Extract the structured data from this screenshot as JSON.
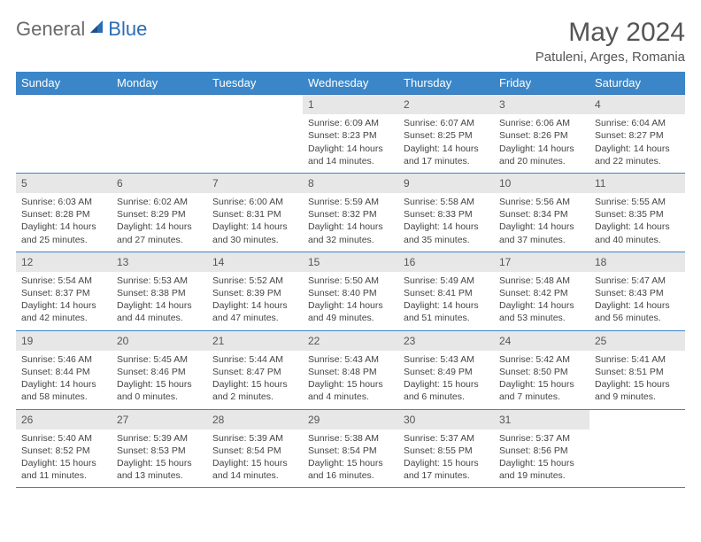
{
  "logo": {
    "general": "General",
    "blue": "Blue"
  },
  "title": "May 2024",
  "location": "Patuleni, Arges, Romania",
  "colors": {
    "header_bg": "#3b86c8",
    "header_text": "#ffffff",
    "daynum_bg": "#e7e7e7",
    "rule": "#3b86c8",
    "text": "#444444",
    "title_text": "#555555",
    "logo_gray": "#6a6a6a",
    "logo_blue": "#2a6db5"
  },
  "weekdays": [
    "Sunday",
    "Monday",
    "Tuesday",
    "Wednesday",
    "Thursday",
    "Friday",
    "Saturday"
  ],
  "weeks": [
    [
      null,
      null,
      null,
      {
        "n": "1",
        "sr": "6:09 AM",
        "ss": "8:23 PM",
        "dl": "14 hours and 14 minutes."
      },
      {
        "n": "2",
        "sr": "6:07 AM",
        "ss": "8:25 PM",
        "dl": "14 hours and 17 minutes."
      },
      {
        "n": "3",
        "sr": "6:06 AM",
        "ss": "8:26 PM",
        "dl": "14 hours and 20 minutes."
      },
      {
        "n": "4",
        "sr": "6:04 AM",
        "ss": "8:27 PM",
        "dl": "14 hours and 22 minutes."
      }
    ],
    [
      {
        "n": "5",
        "sr": "6:03 AM",
        "ss": "8:28 PM",
        "dl": "14 hours and 25 minutes."
      },
      {
        "n": "6",
        "sr": "6:02 AM",
        "ss": "8:29 PM",
        "dl": "14 hours and 27 minutes."
      },
      {
        "n": "7",
        "sr": "6:00 AM",
        "ss": "8:31 PM",
        "dl": "14 hours and 30 minutes."
      },
      {
        "n": "8",
        "sr": "5:59 AM",
        "ss": "8:32 PM",
        "dl": "14 hours and 32 minutes."
      },
      {
        "n": "9",
        "sr": "5:58 AM",
        "ss": "8:33 PM",
        "dl": "14 hours and 35 minutes."
      },
      {
        "n": "10",
        "sr": "5:56 AM",
        "ss": "8:34 PM",
        "dl": "14 hours and 37 minutes."
      },
      {
        "n": "11",
        "sr": "5:55 AM",
        "ss": "8:35 PM",
        "dl": "14 hours and 40 minutes."
      }
    ],
    [
      {
        "n": "12",
        "sr": "5:54 AM",
        "ss": "8:37 PM",
        "dl": "14 hours and 42 minutes."
      },
      {
        "n": "13",
        "sr": "5:53 AM",
        "ss": "8:38 PM",
        "dl": "14 hours and 44 minutes."
      },
      {
        "n": "14",
        "sr": "5:52 AM",
        "ss": "8:39 PM",
        "dl": "14 hours and 47 minutes."
      },
      {
        "n": "15",
        "sr": "5:50 AM",
        "ss": "8:40 PM",
        "dl": "14 hours and 49 minutes."
      },
      {
        "n": "16",
        "sr": "5:49 AM",
        "ss": "8:41 PM",
        "dl": "14 hours and 51 minutes."
      },
      {
        "n": "17",
        "sr": "5:48 AM",
        "ss": "8:42 PM",
        "dl": "14 hours and 53 minutes."
      },
      {
        "n": "18",
        "sr": "5:47 AM",
        "ss": "8:43 PM",
        "dl": "14 hours and 56 minutes."
      }
    ],
    [
      {
        "n": "19",
        "sr": "5:46 AM",
        "ss": "8:44 PM",
        "dl": "14 hours and 58 minutes."
      },
      {
        "n": "20",
        "sr": "5:45 AM",
        "ss": "8:46 PM",
        "dl": "15 hours and 0 minutes."
      },
      {
        "n": "21",
        "sr": "5:44 AM",
        "ss": "8:47 PM",
        "dl": "15 hours and 2 minutes."
      },
      {
        "n": "22",
        "sr": "5:43 AM",
        "ss": "8:48 PM",
        "dl": "15 hours and 4 minutes."
      },
      {
        "n": "23",
        "sr": "5:43 AM",
        "ss": "8:49 PM",
        "dl": "15 hours and 6 minutes."
      },
      {
        "n": "24",
        "sr": "5:42 AM",
        "ss": "8:50 PM",
        "dl": "15 hours and 7 minutes."
      },
      {
        "n": "25",
        "sr": "5:41 AM",
        "ss": "8:51 PM",
        "dl": "15 hours and 9 minutes."
      }
    ],
    [
      {
        "n": "26",
        "sr": "5:40 AM",
        "ss": "8:52 PM",
        "dl": "15 hours and 11 minutes."
      },
      {
        "n": "27",
        "sr": "5:39 AM",
        "ss": "8:53 PM",
        "dl": "15 hours and 13 minutes."
      },
      {
        "n": "28",
        "sr": "5:39 AM",
        "ss": "8:54 PM",
        "dl": "15 hours and 14 minutes."
      },
      {
        "n": "29",
        "sr": "5:38 AM",
        "ss": "8:54 PM",
        "dl": "15 hours and 16 minutes."
      },
      {
        "n": "30",
        "sr": "5:37 AM",
        "ss": "8:55 PM",
        "dl": "15 hours and 17 minutes."
      },
      {
        "n": "31",
        "sr": "5:37 AM",
        "ss": "8:56 PM",
        "dl": "15 hours and 19 minutes."
      },
      null
    ]
  ],
  "labels": {
    "sunrise": "Sunrise:",
    "sunset": "Sunset:",
    "daylight": "Daylight:"
  }
}
